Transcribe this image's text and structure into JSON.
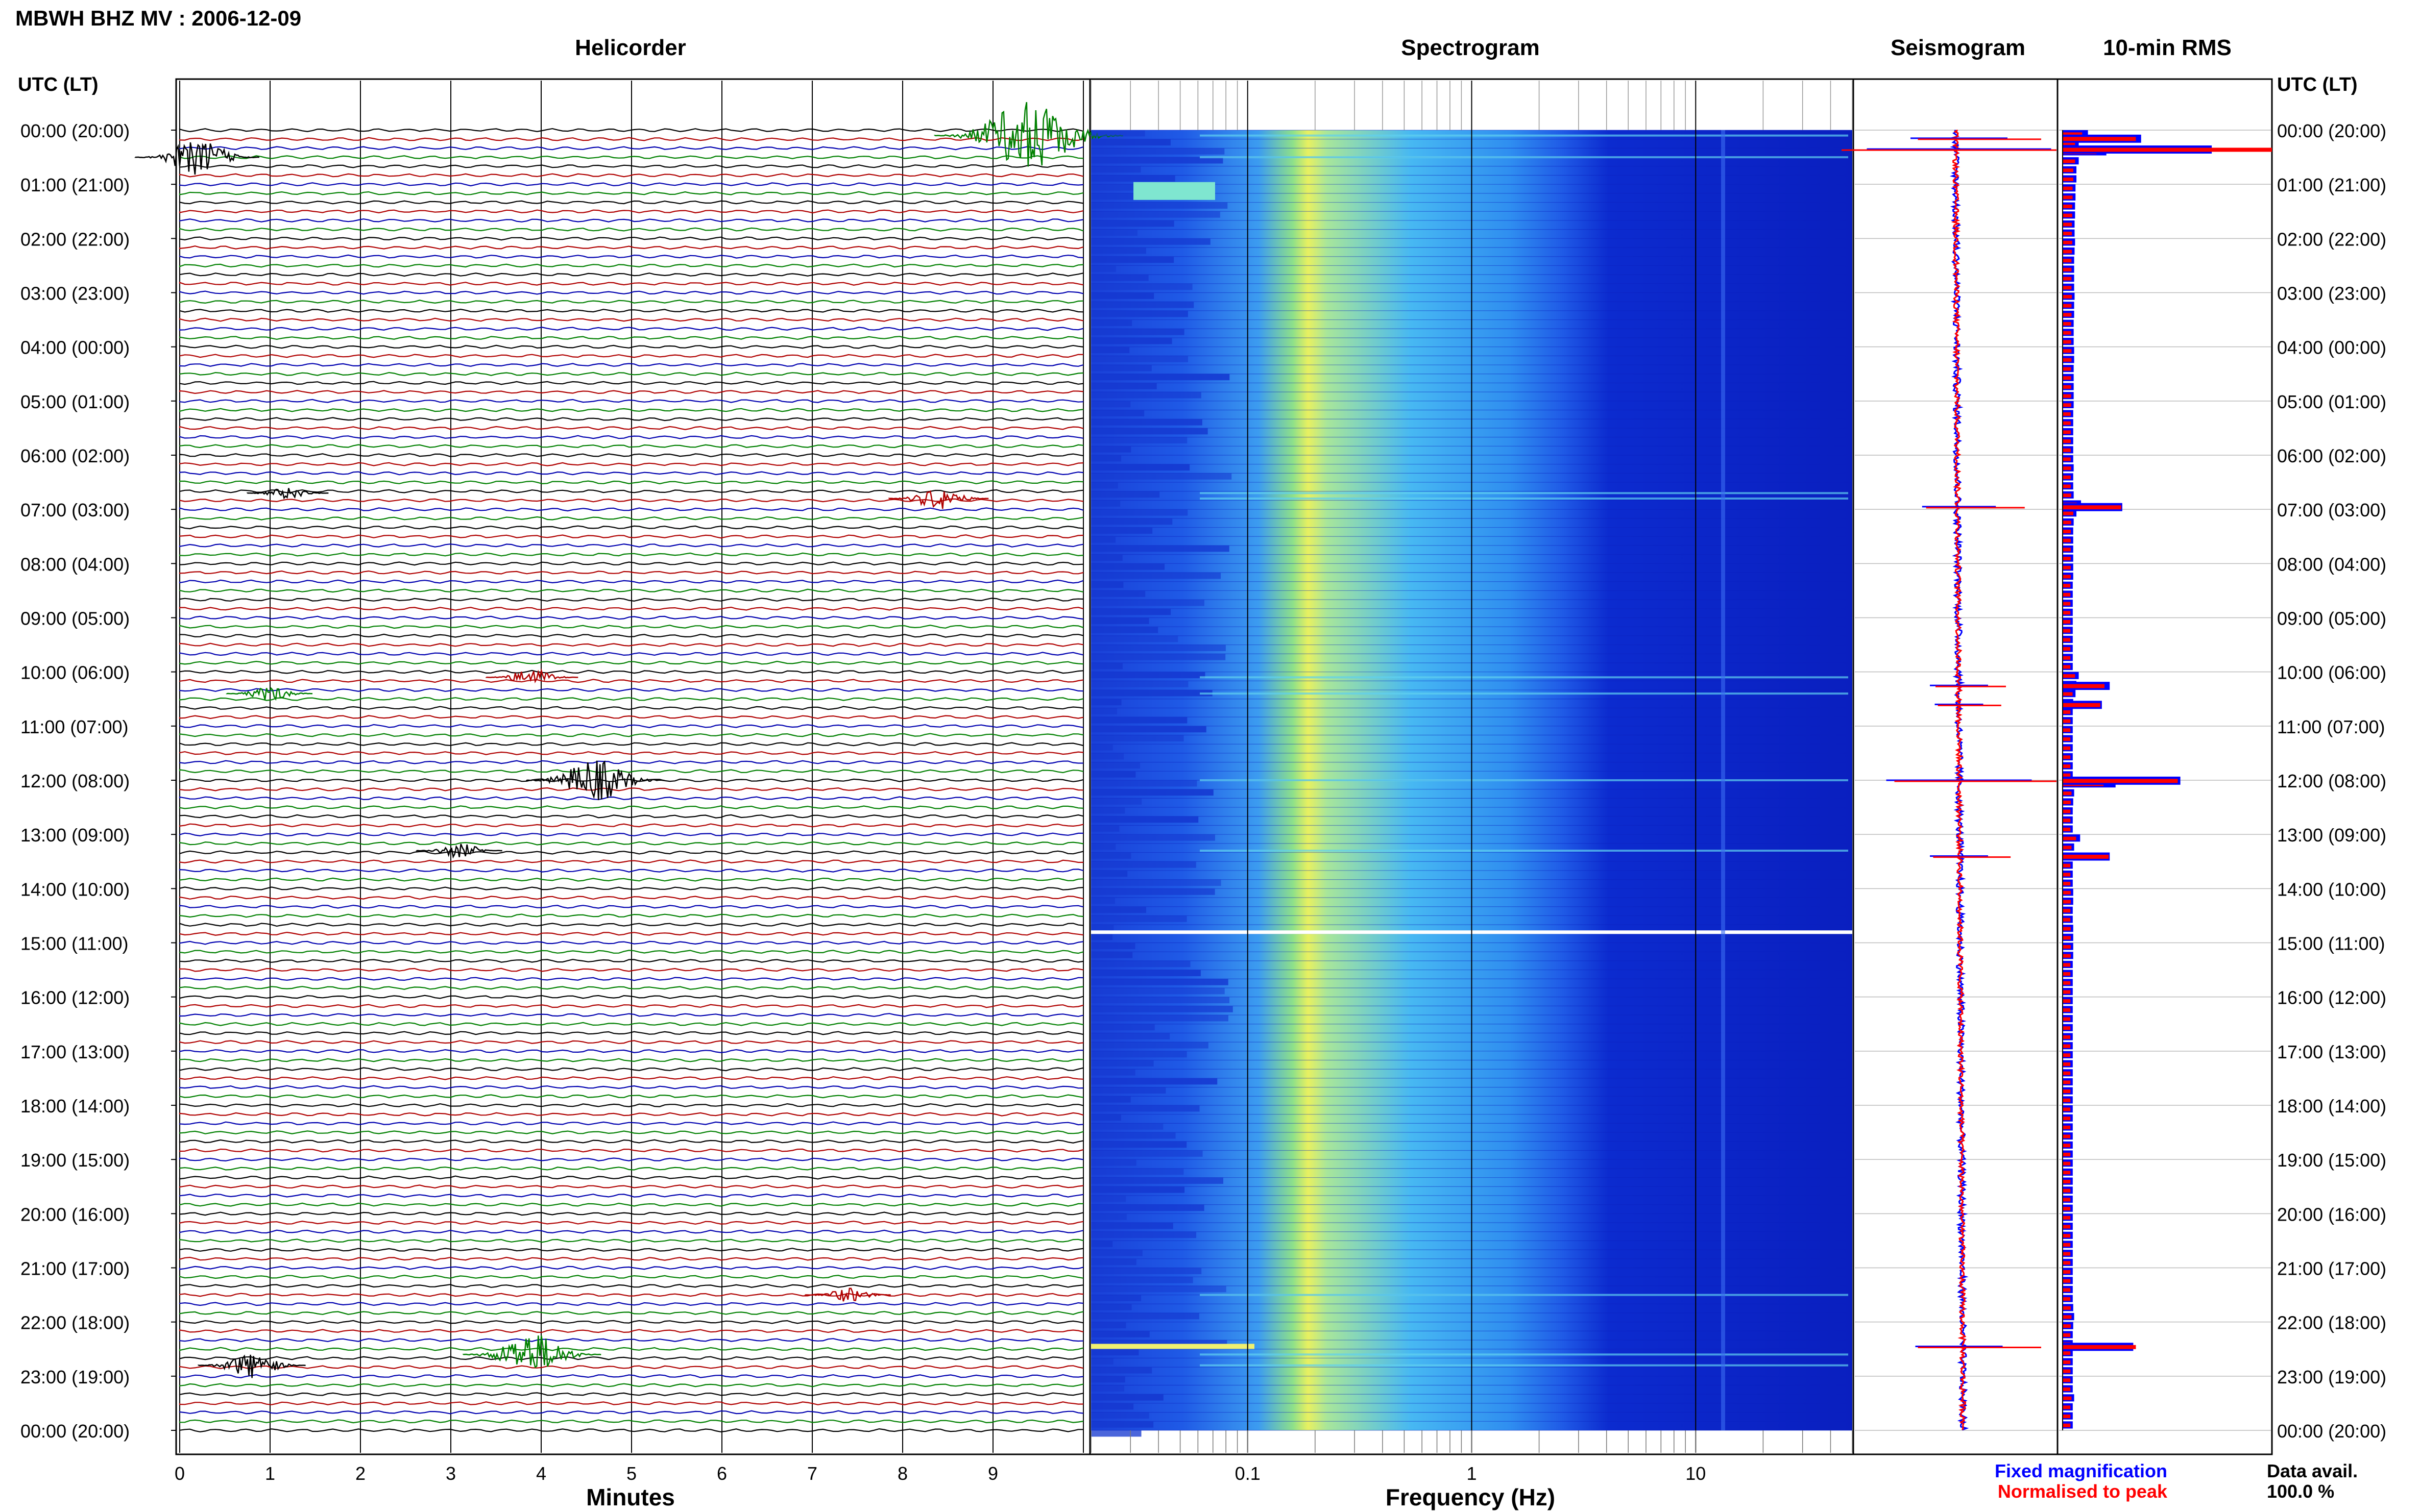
{
  "header": {
    "title": "MBWH BHZ MV : 2006-12-09"
  },
  "panels": {
    "helicorder": "Helicorder",
    "spectrogram": "Spectrogram",
    "seismogram": "Seismogram",
    "rms": "10-min RMS"
  },
  "axes": {
    "time_header_left": "UTC (LT)",
    "time_header_right": "UTC (LT)",
    "minutes_label": "Minutes",
    "frequency_label": "Frequency (Hz)"
  },
  "legend": {
    "fixed": "Fixed magnification",
    "normalised": "Normalised to peak",
    "data_avail_label": "Data avail.",
    "data_avail_value": "100.0 %"
  },
  "colors": {
    "trace_cycle": [
      "#000000",
      "#b00000",
      "#0000b0",
      "#008000"
    ],
    "fixed": "#0000ff",
    "normalised": "#ff0000",
    "grid": "#000000"
  },
  "chart_data": {
    "type": "line",
    "time_ticks": [
      "00:00 (20:00)",
      "01:00 (21:00)",
      "02:00 (22:00)",
      "03:00 (23:00)",
      "04:00 (00:00)",
      "05:00 (01:00)",
      "06:00 (02:00)",
      "07:00 (03:00)",
      "08:00 (04:00)",
      "09:00 (05:00)",
      "10:00 (06:00)",
      "11:00 (07:00)",
      "12:00 (08:00)",
      "13:00 (09:00)",
      "14:00 (10:00)",
      "15:00 (11:00)",
      "16:00 (12:00)",
      "17:00 (13:00)",
      "18:00 (14:00)",
      "19:00 (15:00)",
      "20:00 (16:00)",
      "21:00 (17:00)",
      "22:00 (18:00)",
      "23:00 (19:00)",
      "00:00 (20:00)"
    ],
    "minute_ticks": [
      "0",
      "1",
      "2",
      "3",
      "4",
      "5",
      "6",
      "7",
      "8",
      "9"
    ],
    "xlim_minutes": [
      0,
      10
    ],
    "freq_ticks": [
      "0.1",
      "1",
      "10"
    ],
    "freq_range_hz": [
      0.02,
      50
    ],
    "events": [
      {
        "time_h": 0.1,
        "minute": 9.4,
        "amp": 5,
        "color": "#008000"
      },
      {
        "time_h": 0.5,
        "minute": 0.2,
        "amp": 2.5,
        "color": "#000000"
      },
      {
        "time_h": 6.8,
        "minute": 8.4,
        "amp": 1.5,
        "color": "#b00000"
      },
      {
        "time_h": 6.7,
        "minute": 1.2,
        "amp": 0.8,
        "color": "#000000"
      },
      {
        "time_h": 10.1,
        "minute": 3.9,
        "amp": 1.2,
        "color": "#b00000"
      },
      {
        "time_h": 10.4,
        "minute": 1.0,
        "amp": 1.0,
        "color": "#008000"
      },
      {
        "time_h": 12.0,
        "minute": 4.6,
        "amp": 3.0,
        "color": "#000000"
      },
      {
        "time_h": 13.3,
        "minute": 3.1,
        "amp": 1.0,
        "color": "#000000"
      },
      {
        "time_h": 22.8,
        "minute": 0.8,
        "amp": 1.8,
        "color": "#000000"
      },
      {
        "time_h": 22.6,
        "minute": 3.9,
        "amp": 3.0,
        "color": "#008000"
      },
      {
        "time_h": 21.5,
        "minute": 7.4,
        "amp": 1.0,
        "color": "#b00000"
      }
    ],
    "rms_fixed": [
      0.55,
      0.35,
      0.95,
      0.35,
      0.3,
      0.3,
      0.28,
      0.28,
      0.27,
      0.27,
      0.26,
      0.26,
      0.27,
      0.26,
      0.25,
      0.25,
      0.25,
      0.25,
      0.26,
      0.25,
      0.25,
      0.24,
      0.24,
      0.24,
      0.25,
      0.25,
      0.24,
      0.24,
      0.24,
      0.24,
      0.24,
      0.23,
      0.23,
      0.23,
      0.23,
      0.23,
      0.23,
      0.24,
      0.23,
      0.23,
      0.24,
      0.4,
      0.3,
      0.24,
      0.23,
      0.23,
      0.23,
      0.23,
      0.23,
      0.23,
      0.22,
      0.22,
      0.22,
      0.22,
      0.22,
      0.22,
      0.22,
      0.22,
      0.22,
      0.22,
      0.35,
      0.3,
      0.28,
      0.23,
      0.22,
      0.22,
      0.22,
      0.22,
      0.22,
      0.22,
      0.22,
      0.22,
      1.15,
      0.25,
      0.23,
      0.22,
      0.22,
      0.22,
      0.38,
      0.25,
      0.22,
      0.22,
      0.22,
      0.22,
      0.23,
      0.23,
      0.22,
      0.22,
      0.23,
      0.23,
      0.23,
      0.23,
      0.22,
      0.22,
      0.22,
      0.22,
      0.22,
      0.22,
      0.22,
      0.22,
      0.22,
      0.22,
      0.22,
      0.22,
      0.22,
      0.22,
      0.22,
      0.22,
      0.22,
      0.22,
      0.22,
      0.22,
      0.22,
      0.22,
      0.22,
      0.22,
      0.22,
      0.22,
      0.22,
      0.22,
      0.22,
      0.22,
      0.22,
      0.22,
      0.22,
      0.22,
      0.22,
      0.22,
      0.22,
      0.22,
      0.23,
      0.25,
      0.23,
      0.22,
      0.22,
      0.22,
      0.22,
      0.22,
      0.22,
      0.22,
      0.25,
      0.22,
      0.22,
      0.22,
      0.22,
      0.22,
      0.22,
      0.22,
      0.22,
      0.22,
      0.22,
      0.22,
      0.22,
      0.22,
      0.22,
      0.22,
      0.22,
      0.22,
      0.22,
      0.22,
      0.22,
      0.22,
      0.22,
      0.22,
      0.22,
      0.22,
      0.22,
      0.22,
      0.22,
      0.22,
      0.22,
      0.22,
      0.22,
      0.22,
      0.22,
      0.22,
      0.22,
      0.22,
      0.22,
      0.22,
      0.22,
      0.22,
      0.22,
      0.22,
      0.22,
      0.22,
      0.22,
      0.22,
      0.22,
      0.22,
      0.22,
      0.22,
      0.22,
      0.22,
      0.22,
      0.22,
      0.22,
      0.22,
      0.22,
      0.22,
      0.22,
      0.22,
      0.22,
      0.22,
      0.22,
      0.22,
      0.22,
      0.22,
      0.22,
      0.22,
      0.22,
      0.22,
      0.22,
      0.22,
      0.22,
      0.22,
      0.22,
      0.22,
      0.22,
      0.22,
      0.22,
      0.22,
      0.22,
      0.22,
      0.22,
      0.22,
      0.22,
      0.22,
      0.22,
      0.22,
      0.22,
      0.22,
      0.22,
      0.22,
      0.22,
      0.22,
      0.22,
      0.22,
      0.22,
      0.22,
      0.22,
      0.22,
      0.22,
      0.22,
      0.22,
      0.22,
      0.22,
      0.22,
      0.22,
      0.22,
      0.22,
      0.22,
      0.22,
      0.22,
      0.22,
      0.22,
      0.22,
      0.22,
      0.22,
      0.22,
      0.22,
      0.22,
      0.22,
      0.22,
      0.22,
      0.22,
      0.22,
      0.22,
      0.22,
      0.22,
      0.22,
      0.22,
      0.22,
      0.22,
      0.22,
      0.22,
      0.22,
      0.22,
      0.22,
      0.22,
      0.22,
      0.22,
      0.22,
      0.22,
      0.22,
      0.22,
      0.22,
      0.22,
      0.22,
      0.22,
      0.22,
      0.22,
      0.22,
      0.22,
      0.22,
      0.22,
      0.22,
      0.22,
      0.22,
      0.22,
      0.22,
      0.22,
      0.22,
      0.22,
      0.22,
      0.22,
      0.22,
      0.22,
      0.22,
      0.22,
      0.22,
      0.22,
      0.22,
      0.22,
      0.22,
      0.22,
      0.22,
      0.22,
      0.22,
      0.22,
      0.22,
      0.22,
      0.22,
      0.22,
      0.22,
      0.22,
      0.22,
      0.22,
      0.22,
      0.22,
      0.22,
      0.22,
      0.22,
      0.22,
      0.22,
      0.22,
      0.22
    ],
    "rms_peaks": [
      {
        "time_h": 0.35,
        "fixed": 0.95,
        "norm": 1.0
      },
      {
        "time_h": 0.15,
        "fixed": 0.5,
        "norm": 0.35
      },
      {
        "time_h": 6.95,
        "fixed": 0.38,
        "norm": 0.28
      },
      {
        "time_h": 10.25,
        "fixed": 0.3,
        "norm": 0.2
      },
      {
        "time_h": 10.6,
        "fixed": 0.25,
        "norm": 0.18
      },
      {
        "time_h": 12.0,
        "fixed": 0.75,
        "norm": 0.55
      },
      {
        "time_h": 13.4,
        "fixed": 0.3,
        "norm": 0.22
      },
      {
        "time_h": 22.45,
        "fixed": 0.45,
        "norm": 0.35
      }
    ]
  }
}
